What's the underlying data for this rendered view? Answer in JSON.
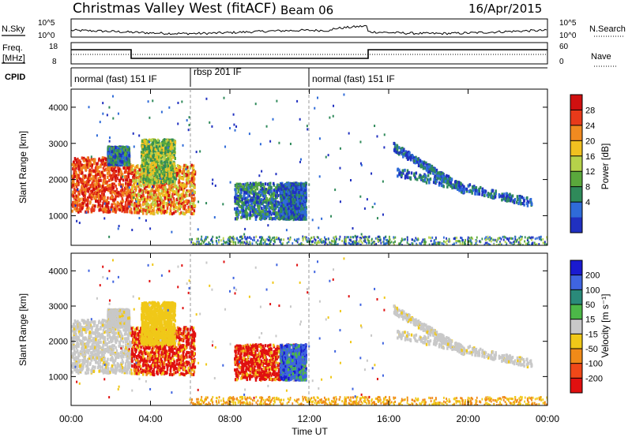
{
  "header": {
    "station": "Christmas Valley West (fitACF)",
    "beam": "Beam 06",
    "date": "16/Apr/2015"
  },
  "noise_panel": {
    "left_label": "N.Sky",
    "right_label": "N.Search",
    "left_ticks": [
      "10^5",
      "10^0"
    ],
    "right_ticks": [
      "10^5",
      "10^0"
    ]
  },
  "freq_panel": {
    "left_label_1": "Freq.",
    "left_label_2": "[MHz]",
    "right_label": "Nave",
    "left_ticks": [
      "18",
      "8"
    ],
    "right_ticks": [
      "60",
      "0"
    ]
  },
  "cpid": {
    "label": "CPID",
    "segments": [
      {
        "start_hour": 0.0,
        "end_hour": 6.0,
        "name": "normal (fast) 151 IF"
      },
      {
        "start_hour": 6.0,
        "end_hour": 12.0,
        "name": "rbsp 201 IF"
      },
      {
        "start_hour": 12.0,
        "end_hour": 24.0,
        "name": "normal (fast) 151 IF"
      }
    ]
  },
  "colorbars": {
    "power": {
      "label": "Power [dB]",
      "ticks": [
        "28",
        "24",
        "20",
        "16",
        "12",
        "8",
        "4"
      ]
    },
    "velocity": {
      "label": "Velocity [m s⁻¹]",
      "ticks": [
        "200",
        "100",
        "50",
        "15",
        "-15",
        "-50",
        "-100",
        "-200"
      ]
    }
  },
  "chart_data": {
    "type": "heatmap",
    "xlabel": "Time UT",
    "ylabel": "Slant Range [km]",
    "x_ticks": [
      "00:00",
      "04:00",
      "08:00",
      "12:00",
      "16:00",
      "20:00",
      "00:00"
    ],
    "y_ticks": [
      "1000",
      "2000",
      "3000",
      "4000"
    ],
    "xlim": [
      0,
      24
    ],
    "ylim": [
      180,
      4500
    ],
    "power_colors": [
      "#2030c0",
      "#2f6bd8",
      "#2f8a5a",
      "#5aa83c",
      "#b6d24a",
      "#f0c020",
      "#f08a20",
      "#e83a1a",
      "#d01010"
    ],
    "velocity_colors": {
      "blue_dark": "#1a1ad0",
      "blue": "#3f64e0",
      "teal": "#2a8a7a",
      "green": "#4cb848",
      "grey": "#c8c8c8",
      "yellow": "#f0c818",
      "orange": "#f08a18",
      "red_orange": "#f04818",
      "red": "#e01010"
    },
    "regions": [
      {
        "label": "A",
        "t0": 0.0,
        "t1": 3.0,
        "r0": 1100,
        "r1": 2600,
        "power": [
          6,
          8
        ],
        "vel": "grey"
      },
      {
        "label": "B",
        "t0": 1.8,
        "t1": 2.9,
        "r0": 2400,
        "r1": 2900,
        "power": [
          0,
          3
        ],
        "vel": "grey"
      },
      {
        "label": "C",
        "t0": 3.0,
        "t1": 6.2,
        "r0": 1050,
        "r1": 2400,
        "power": [
          4,
          8
        ],
        "vel": "red"
      },
      {
        "label": "D",
        "t0": 3.5,
        "t1": 5.2,
        "r0": 1900,
        "r1": 3100,
        "power": [
          2,
          5
        ],
        "vel": "yellow"
      },
      {
        "label": "E",
        "t0": 8.2,
        "t1": 11.8,
        "r0": 900,
        "r1": 1900,
        "power": [
          0,
          3
        ],
        "vel": "red"
      },
      {
        "label": "F",
        "t0": 10.5,
        "t1": 11.8,
        "r0": 900,
        "r1": 1900,
        "power": [
          0,
          2
        ],
        "vel": "blue"
      },
      {
        "label": "G",
        "t0": 16.2,
        "t1": 19.8,
        "r0": 2900,
        "r1": 1700,
        "power": [
          0,
          2
        ],
        "vel": "grey"
      },
      {
        "label": "H",
        "t0": 16.4,
        "t1": 23.2,
        "r0": 2200,
        "r1": 1350,
        "power": [
          0,
          2
        ],
        "vel": "grey"
      }
    ],
    "gs_band": {
      "r0": 180,
      "r1": 420,
      "t0": 5.9,
      "t1": 24.0
    }
  }
}
